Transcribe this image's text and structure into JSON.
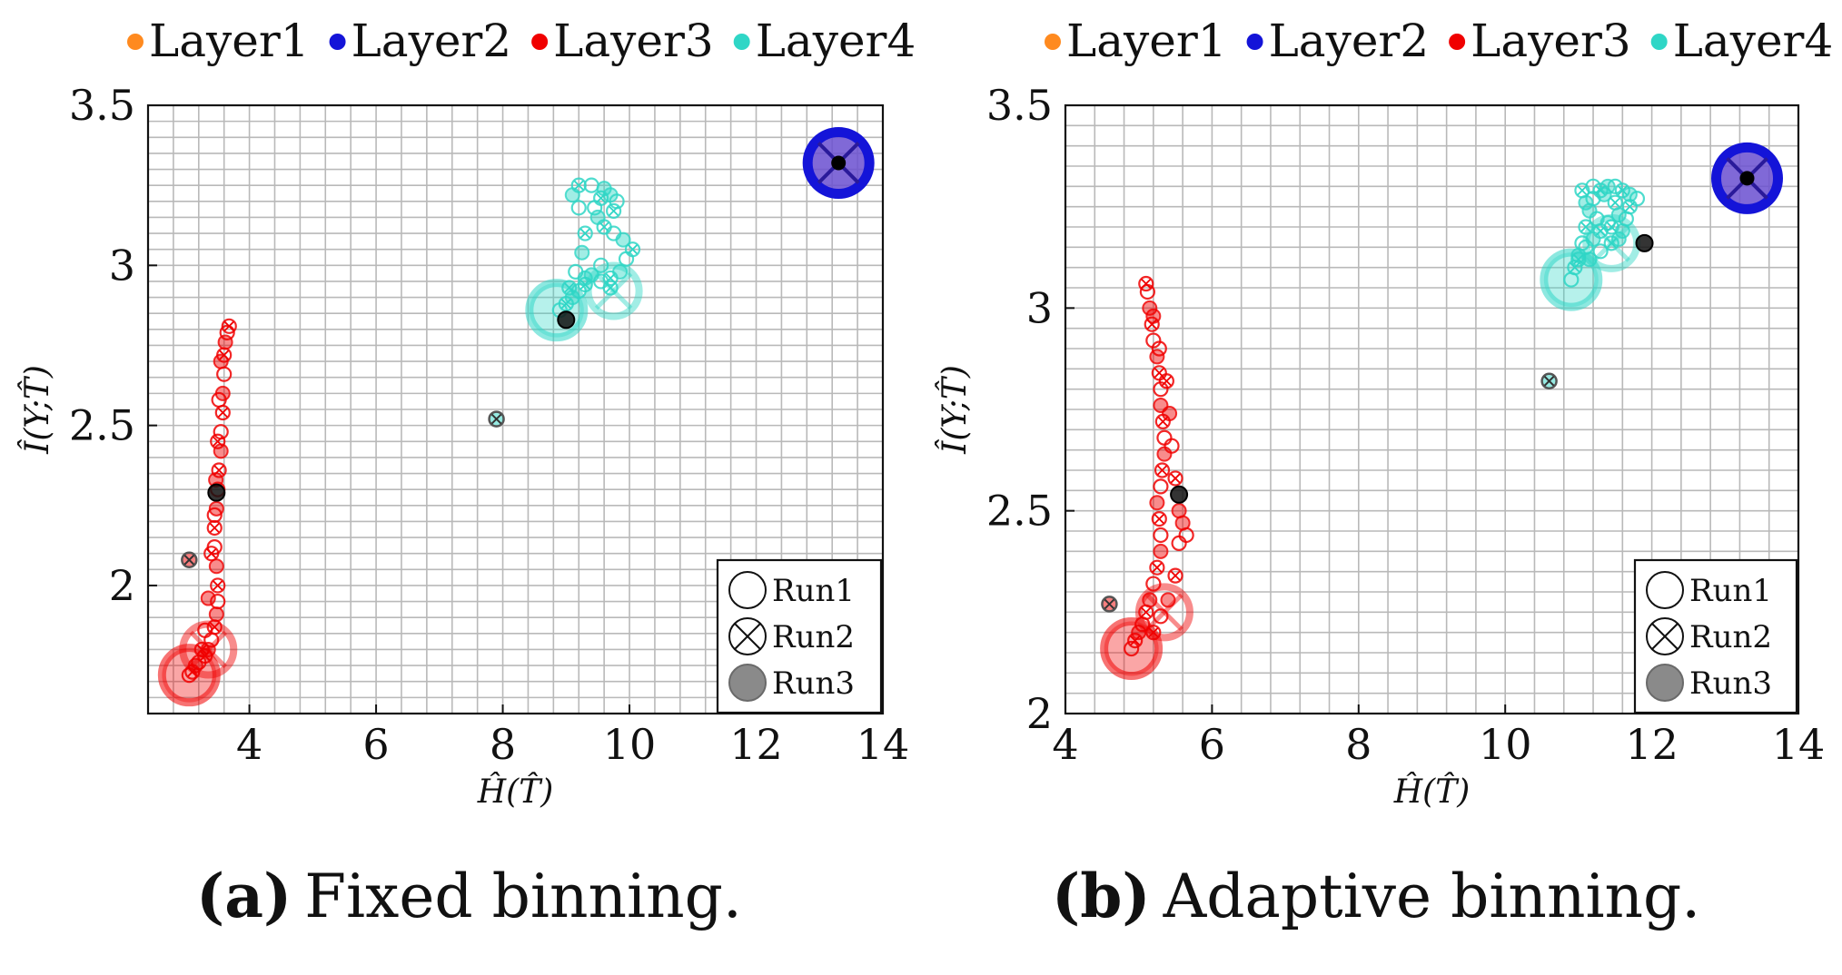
{
  "legend": {
    "items": [
      {
        "label": "Layer1",
        "color": "#ff8a1f"
      },
      {
        "label": "Layer2",
        "color": "#1414d8"
      },
      {
        "label": "Layer3",
        "color": "#f00000"
      },
      {
        "label": "Layer4",
        "color": "#2fd6c6"
      }
    ]
  },
  "run_legend": {
    "items": [
      {
        "label": "Run1",
        "marker": "circle"
      },
      {
        "label": "Run2",
        "marker": "circle-x"
      },
      {
        "label": "Run3",
        "marker": "filled-gray"
      }
    ]
  },
  "captions": [
    {
      "letter": "(a)",
      "text": "Fixed binning."
    },
    {
      "letter": "(b)",
      "text": "Adaptive binning."
    }
  ],
  "chart_data": [
    {
      "type": "scatter",
      "title": "",
      "xlabel": "Ĥ(T̂)",
      "ylabel": "Î(Y;T̂)",
      "xlim": [
        2.4,
        14.0
      ],
      "ylim": [
        1.6,
        3.5
      ],
      "xticks": [
        4,
        6,
        8,
        10,
        12,
        14
      ],
      "xtick_labels": [
        "4",
        "6",
        "8",
        "10",
        "12",
        "14"
      ],
      "yticks": [
        2.0,
        2.5,
        3.0,
        3.5
      ],
      "ytick_labels": [
        "2",
        "2.5",
        "3",
        "3.5"
      ],
      "grid": true,
      "series": [
        {
          "name": "Layer2",
          "color": "#1414d8",
          "points": [
            [
              13.3,
              3.32
            ]
          ]
        },
        {
          "name": "Layer3",
          "color": "#f00000",
          "points": [
            [
              3.05,
              1.72
            ],
            [
              3.1,
              1.73
            ],
            [
              3.15,
              1.75
            ],
            [
              3.2,
              1.76
            ],
            [
              3.3,
              1.78
            ],
            [
              3.35,
              1.8
            ],
            [
              3.4,
              1.83
            ],
            [
              3.45,
              1.87
            ],
            [
              3.48,
              1.91
            ],
            [
              3.5,
              1.95
            ],
            [
              3.5,
              2.0
            ],
            [
              3.48,
              2.06
            ],
            [
              3.45,
              2.12
            ],
            [
              3.45,
              2.18
            ],
            [
              3.48,
              2.24
            ],
            [
              3.5,
              2.3
            ],
            [
              3.52,
              2.36
            ],
            [
              3.55,
              2.42
            ],
            [
              3.55,
              2.48
            ],
            [
              3.58,
              2.54
            ],
            [
              3.58,
              2.6
            ],
            [
              3.6,
              2.66
            ],
            [
              3.6,
              2.72
            ],
            [
              3.62,
              2.76
            ],
            [
              3.65,
              2.79
            ],
            [
              3.68,
              2.81
            ],
            [
              3.55,
              2.7
            ],
            [
              3.52,
              2.58
            ],
            [
              3.5,
              2.45
            ],
            [
              3.47,
              2.33
            ],
            [
              3.45,
              2.22
            ],
            [
              3.4,
              2.1
            ],
            [
              3.35,
              1.96
            ],
            [
              3.3,
              1.86
            ],
            [
              3.25,
              1.8
            ]
          ],
          "endpoints": [
            [
              3.05,
              1.72
            ],
            [
              3.35,
              1.8
            ],
            [
              3.05,
              2.08
            ],
            [
              3.48,
              2.29
            ]
          ]
        },
        {
          "name": "Layer4",
          "color": "#2fd6c6",
          "points": [
            [
              8.9,
              2.86
            ],
            [
              9.0,
              2.88
            ],
            [
              9.1,
              2.9
            ],
            [
              9.2,
              2.92
            ],
            [
              9.3,
              2.94
            ],
            [
              9.4,
              2.97
            ],
            [
              9.55,
              3.0
            ],
            [
              9.7,
              2.96
            ],
            [
              9.85,
              2.98
            ],
            [
              9.95,
              3.02
            ],
            [
              10.05,
              3.05
            ],
            [
              9.9,
              3.08
            ],
            [
              9.75,
              3.1
            ],
            [
              9.6,
              3.12
            ],
            [
              9.5,
              3.15
            ],
            [
              9.45,
              3.18
            ],
            [
              9.55,
              3.21
            ],
            [
              9.7,
              3.22
            ],
            [
              9.8,
              3.2
            ],
            [
              9.75,
              3.17
            ],
            [
              9.6,
              3.24
            ],
            [
              9.4,
              3.25
            ],
            [
              9.2,
              3.25
            ],
            [
              9.1,
              3.22
            ],
            [
              9.2,
              3.18
            ],
            [
              9.3,
              3.1
            ],
            [
              9.25,
              3.04
            ],
            [
              9.15,
              2.98
            ],
            [
              9.05,
              2.93
            ],
            [
              9.3,
              2.96
            ],
            [
              9.55,
              2.95
            ],
            [
              9.7,
              2.93
            ]
          ],
          "endpoints": [
            [
              8.85,
              2.86
            ],
            [
              9.75,
              2.92
            ],
            [
              7.9,
              2.52
            ],
            [
              9.0,
              2.83
            ]
          ]
        }
      ]
    },
    {
      "type": "scatter",
      "title": "",
      "xlabel": "Ĥ(T̂)",
      "ylabel": "Î(Y;T̂)",
      "xlim": [
        4.0,
        14.0
      ],
      "ylim": [
        2.0,
        3.5
      ],
      "xticks": [
        4,
        6,
        8,
        10,
        12,
        14
      ],
      "xtick_labels": [
        "4",
        "6",
        "8",
        "10",
        "12",
        "14"
      ],
      "yticks": [
        2.0,
        2.5,
        3.0,
        3.5
      ],
      "ytick_labels": [
        "2",
        "2.5",
        "3",
        "3.5"
      ],
      "grid": true,
      "series": [
        {
          "name": "Layer2",
          "color": "#1414d8",
          "points": [
            [
              13.3,
              3.32
            ]
          ]
        },
        {
          "name": "Layer3",
          "color": "#f00000",
          "points": [
            [
              4.9,
              2.16
            ],
            [
              4.95,
              2.18
            ],
            [
              5.0,
              2.2
            ],
            [
              5.05,
              2.22
            ],
            [
              5.1,
              2.25
            ],
            [
              5.15,
              2.28
            ],
            [
              5.2,
              2.32
            ],
            [
              5.25,
              2.36
            ],
            [
              5.3,
              2.4
            ],
            [
              5.3,
              2.44
            ],
            [
              5.28,
              2.48
            ],
            [
              5.25,
              2.52
            ],
            [
              5.3,
              2.56
            ],
            [
              5.32,
              2.6
            ],
            [
              5.35,
              2.64
            ],
            [
              5.35,
              2.68
            ],
            [
              5.33,
              2.72
            ],
            [
              5.3,
              2.76
            ],
            [
              5.3,
              2.8
            ],
            [
              5.28,
              2.84
            ],
            [
              5.25,
              2.88
            ],
            [
              5.2,
              2.92
            ],
            [
              5.18,
              2.96
            ],
            [
              5.15,
              3.0
            ],
            [
              5.12,
              3.04
            ],
            [
              5.1,
              3.06
            ],
            [
              5.2,
              2.98
            ],
            [
              5.28,
              2.9
            ],
            [
              5.38,
              2.82
            ],
            [
              5.42,
              2.74
            ],
            [
              5.45,
              2.66
            ],
            [
              5.5,
              2.58
            ],
            [
              5.55,
              2.5
            ],
            [
              5.55,
              2.42
            ],
            [
              5.5,
              2.34
            ],
            [
              5.4,
              2.28
            ],
            [
              5.3,
              2.24
            ],
            [
              5.2,
              2.2
            ],
            [
              5.6,
              2.47
            ],
            [
              5.65,
              2.44
            ]
          ],
          "endpoints": [
            [
              4.9,
              2.16
            ],
            [
              5.35,
              2.25
            ],
            [
              4.6,
              2.27
            ],
            [
              5.55,
              2.54
            ]
          ]
        },
        {
          "name": "Layer4",
          "color": "#2fd6c6",
          "points": [
            [
              10.9,
              3.07
            ],
            [
              10.95,
              3.1
            ],
            [
              11.0,
              3.13
            ],
            [
              11.05,
              3.16
            ],
            [
              11.1,
              3.2
            ],
            [
              11.15,
              3.24
            ],
            [
              11.2,
              3.27
            ],
            [
              11.3,
              3.29
            ],
            [
              11.4,
              3.3
            ],
            [
              11.5,
              3.3
            ],
            [
              11.6,
              3.29
            ],
            [
              11.7,
              3.28
            ],
            [
              11.8,
              3.27
            ],
            [
              11.7,
              3.25
            ],
            [
              11.55,
              3.23
            ],
            [
              11.4,
              3.21
            ],
            [
              11.3,
              3.19
            ],
            [
              11.2,
              3.17
            ],
            [
              11.1,
              3.15
            ],
            [
              11.0,
              3.12
            ],
            [
              11.15,
              3.12
            ],
            [
              11.3,
              3.14
            ],
            [
              11.45,
              3.16
            ],
            [
              11.6,
              3.19
            ],
            [
              11.65,
              3.22
            ],
            [
              11.5,
              3.26
            ],
            [
              11.35,
              3.28
            ],
            [
              11.2,
              3.3
            ],
            [
              11.05,
              3.29
            ],
            [
              11.1,
              3.26
            ],
            [
              11.25,
              3.22
            ],
            [
              11.45,
              3.2
            ],
            [
              11.55,
              3.17
            ]
          ],
          "endpoints": [
            [
              10.9,
              3.07
            ],
            [
              11.45,
              3.16
            ],
            [
              10.6,
              2.82
            ],
            [
              11.9,
              3.16
            ]
          ]
        }
      ]
    }
  ]
}
